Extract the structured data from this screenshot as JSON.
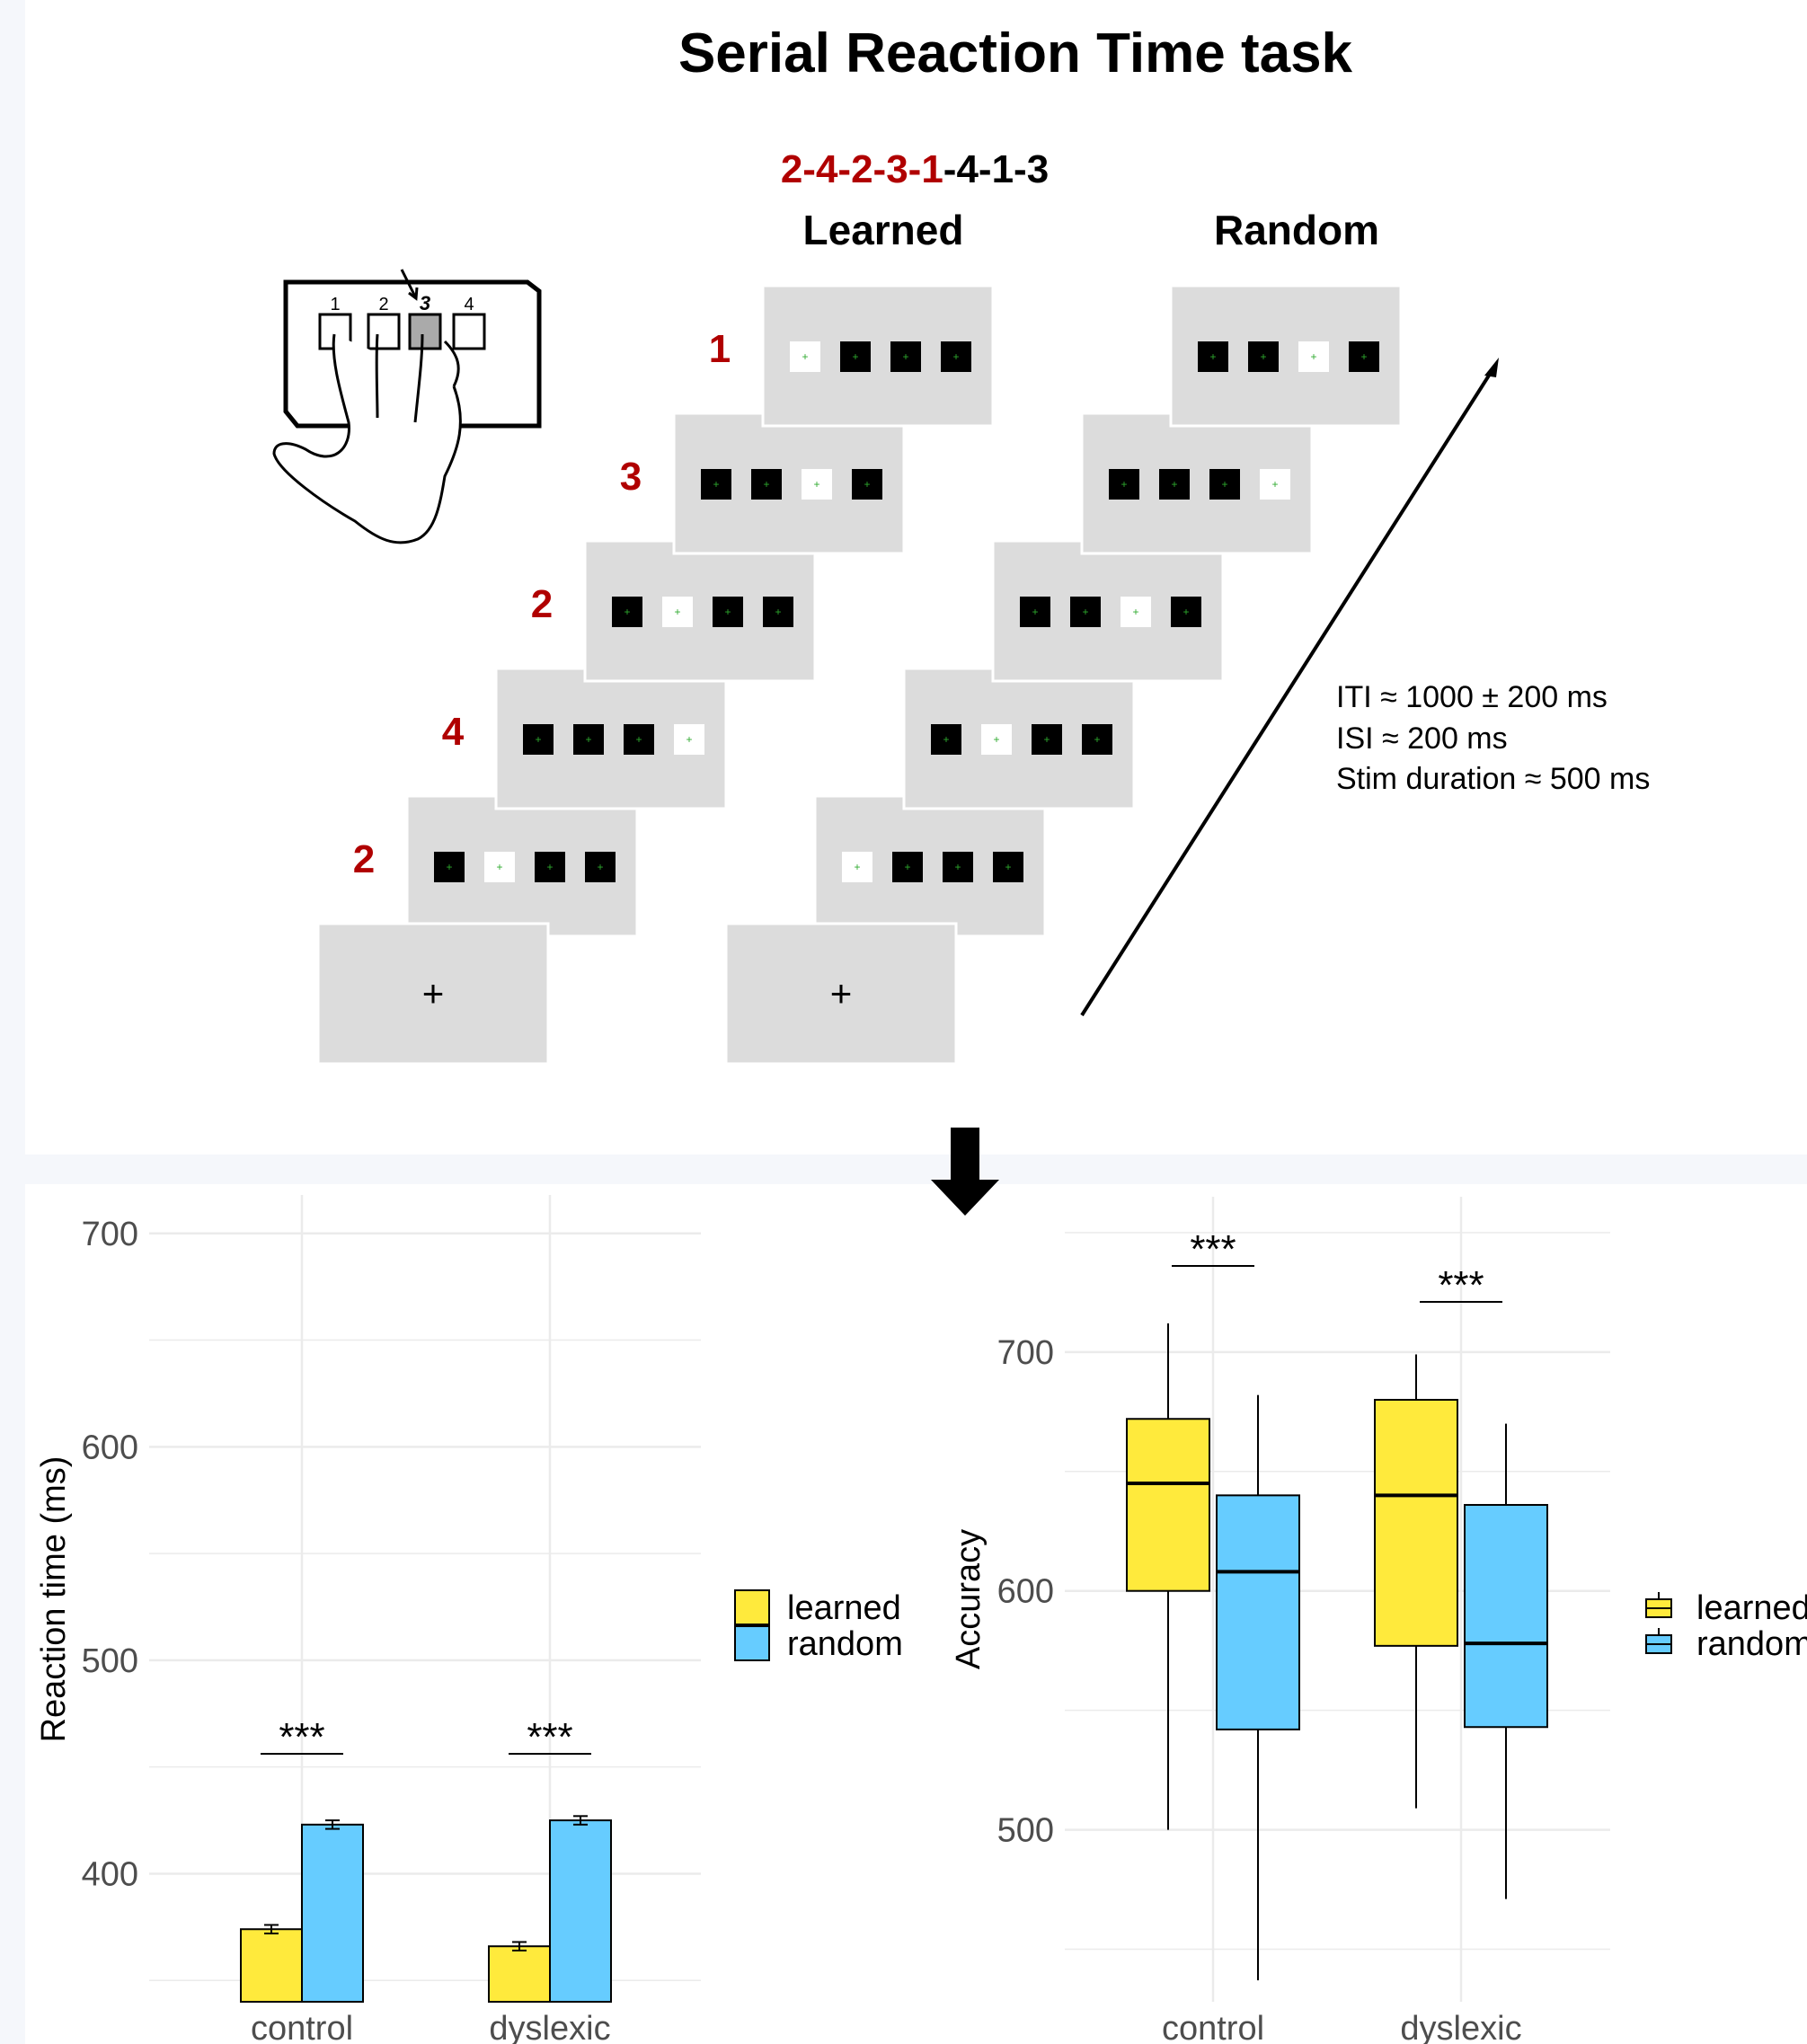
{
  "title": "Serial Reaction Time task",
  "sequence": {
    "highlighted": "2-4-2-3-1",
    "rest": "-4-1-3"
  },
  "conditions": {
    "learned": "Learned",
    "random": "Random"
  },
  "learned_numbers": [
    "1",
    "3",
    "2",
    "4",
    "2"
  ],
  "learned_lit": [
    0,
    2,
    1,
    3,
    1
  ],
  "random_lit": [
    2,
    3,
    2,
    1,
    0
  ],
  "fixation": "+",
  "hand_key_labels": [
    "1",
    "2",
    "3",
    "4"
  ],
  "timing": [
    "ITI ≈ 1000 ± 200 ms",
    "ISI ≈ 200 ms",
    "Stim duration ≈ 500 ms"
  ],
  "colors": {
    "learned": "#ffea3c",
    "random": "#66ccff",
    "highlight_red": "#b00000",
    "screen_gray": "#dcdcdc",
    "grid": "#ebebeb"
  },
  "chart_data": [
    {
      "type": "bar",
      "ylabel": "Reaction time (ms)",
      "xlabel": "",
      "categories": [
        "control",
        "dyslexic"
      ],
      "ylim": [
        340,
        718
      ],
      "yticks": [
        400,
        500,
        600,
        700
      ],
      "series": [
        {
          "name": "learned",
          "values": [
            374,
            366
          ],
          "errors": [
            2,
            2
          ]
        },
        {
          "name": "random",
          "values": [
            423,
            425
          ],
          "errors": [
            2,
            2
          ]
        }
      ],
      "significance": [
        "***",
        "***"
      ],
      "legend": "right",
      "grid": true
    },
    {
      "type": "boxplot",
      "ylabel": "Accuracy",
      "xlabel": "",
      "categories": [
        "control",
        "dyslexic"
      ],
      "ylim": [
        428,
        765
      ],
      "yticks": [
        500,
        600,
        700
      ],
      "series": [
        {
          "name": "learned",
          "boxes": [
            {
              "min": 500,
              "q1": 600,
              "median": 645,
              "q3": 672,
              "max": 712
            },
            {
              "min": 509,
              "q1": 577,
              "median": 640,
              "q3": 680,
              "max": 699
            }
          ]
        },
        {
          "name": "random",
          "boxes": [
            {
              "min": 437,
              "q1": 542,
              "median": 608,
              "q3": 640,
              "max": 682
            },
            {
              "min": 471,
              "q1": 543,
              "median": 578,
              "q3": 636,
              "max": 670
            }
          ]
        }
      ],
      "significance": [
        "***",
        "***"
      ],
      "legend": "right",
      "grid": true
    }
  ]
}
